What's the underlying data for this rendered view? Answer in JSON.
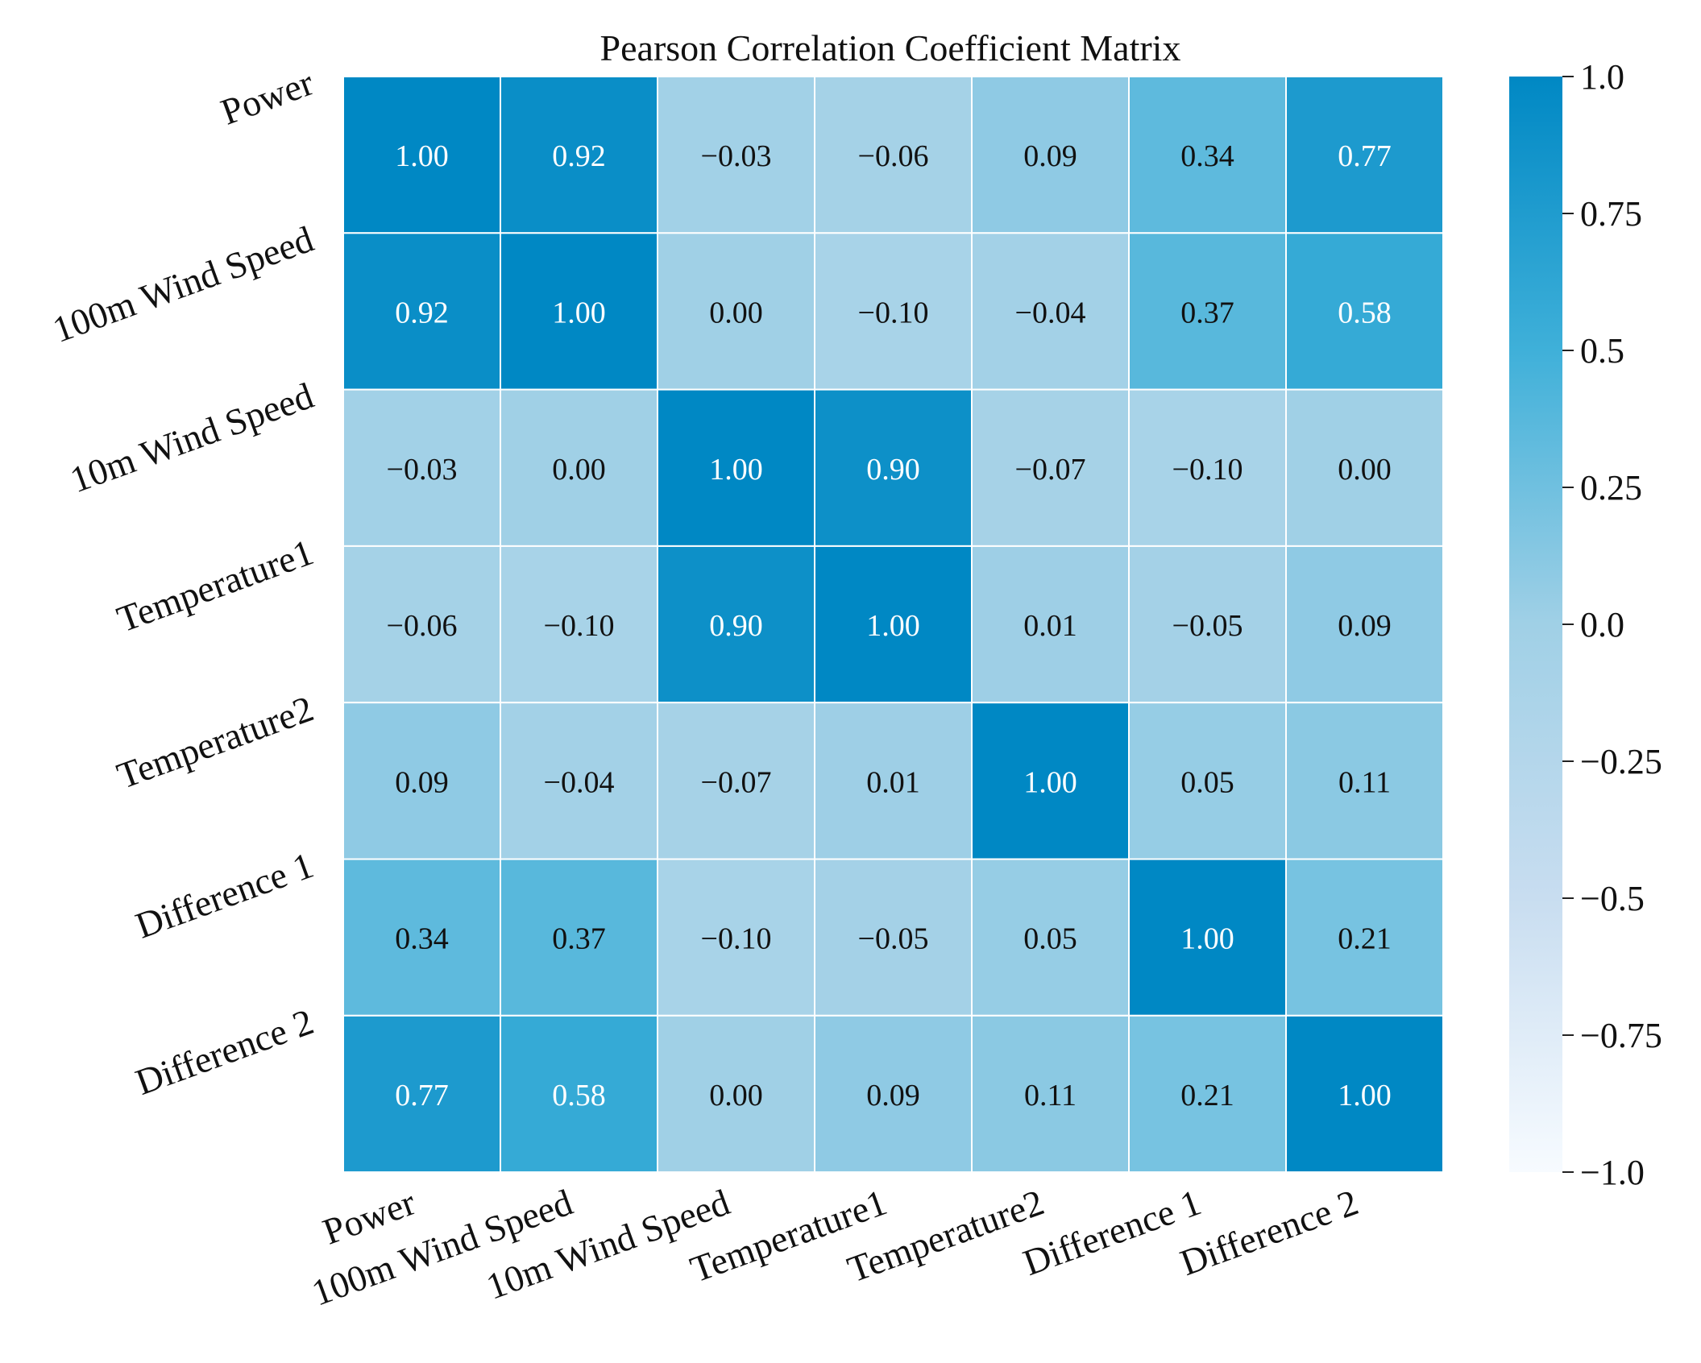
{
  "chart_data": {
    "type": "heatmap",
    "title": "Pearson Correlation Coefficient Matrix",
    "x_labels": [
      "Power",
      "100m Wind Speed",
      "10m Wind Speed",
      "Temperature1",
      "Temperature2",
      "Difference 1",
      "Difference 2"
    ],
    "y_labels": [
      "Power",
      "100m Wind Speed",
      "10m Wind Speed",
      "Temperature1",
      "Temperature2",
      "Difference 1",
      "Difference 2"
    ],
    "values": [
      [
        1.0,
        0.92,
        -0.03,
        -0.06,
        0.09,
        0.34,
        0.77
      ],
      [
        0.92,
        1.0,
        0.0,
        -0.1,
        -0.04,
        0.37,
        0.58
      ],
      [
        -0.03,
        0.0,
        1.0,
        0.9,
        -0.07,
        -0.1,
        0.0
      ],
      [
        -0.06,
        -0.1,
        0.9,
        1.0,
        0.01,
        -0.05,
        0.09
      ],
      [
        0.09,
        -0.04,
        -0.07,
        0.01,
        1.0,
        0.05,
        0.11
      ],
      [
        0.34,
        0.37,
        -0.1,
        -0.05,
        0.05,
        1.0,
        0.21
      ],
      [
        0.77,
        0.58,
        0.0,
        0.09,
        0.11,
        0.21,
        1.0
      ]
    ],
    "annotations": [
      [
        "1.00",
        "0.92",
        "−0.03",
        "−0.06",
        "0.09",
        "0.34",
        "0.77"
      ],
      [
        "0.92",
        "1.00",
        "0.00",
        "−0.10",
        "−0.04",
        "0.37",
        "0.58"
      ],
      [
        "−0.03",
        "0.00",
        "1.00",
        "0.90",
        "−0.07",
        "−0.10",
        "0.00"
      ],
      [
        "−0.06",
        "−0.10",
        "0.90",
        "1.00",
        "0.01",
        "−0.05",
        "0.09"
      ],
      [
        "0.09",
        "−0.04",
        "−0.07",
        "0.01",
        "1.00",
        "0.05",
        "0.11"
      ],
      [
        "0.34",
        "0.37",
        "−0.10",
        "−0.05",
        "0.05",
        "1.00",
        "0.21"
      ],
      [
        "0.77",
        "0.58",
        "0.00",
        "0.09",
        "0.11",
        "0.21",
        "1.00"
      ]
    ],
    "vmin": -1.0,
    "vmax": 1.0,
    "colorbar": {
      "ticks": [
        1.0,
        0.75,
        0.5,
        0.25,
        0.0,
        -0.25,
        -0.5,
        -0.75,
        -1.0
      ],
      "tick_labels": [
        "1.0",
        "0.75",
        "0.5",
        "0.25",
        "0.0",
        "−0.25",
        "−0.5",
        "−0.75",
        "−1.0"
      ]
    },
    "colors": {
      "low": "#f7fbff",
      "mid_low": "#c8ddf0",
      "mid": "#a0d0e6",
      "mid_high": "#3fb0d9",
      "high": "#0088c4",
      "text_light": "#ffffff",
      "text_dark": "#111111",
      "grid": "#ffffff"
    }
  }
}
